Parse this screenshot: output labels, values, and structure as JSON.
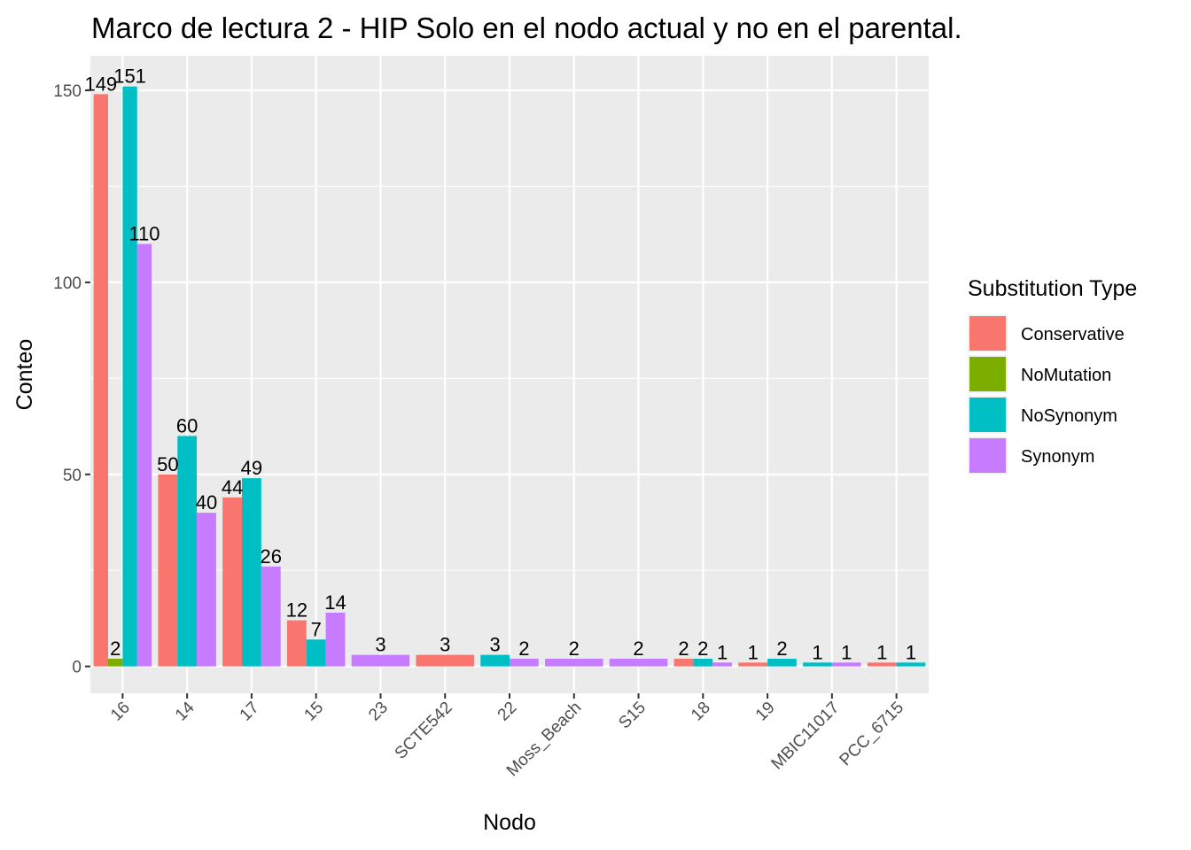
{
  "chart_data": {
    "type": "bar",
    "title": "Marco de lectura 2 - HIP Solo en el nodo actual y no en el parental.",
    "xlabel": "Nodo",
    "ylabel": "Conteo",
    "categories": [
      "16",
      "14",
      "17",
      "15",
      "23",
      "SCTE542",
      "22",
      "Moss_Beach",
      "S15",
      "18",
      "19",
      "MBIC11017",
      "PCC_6715"
    ],
    "ylim": [
      -7,
      159
    ],
    "yticks": [
      0,
      50,
      100,
      150
    ],
    "grid": true,
    "legend": {
      "title": "Substitution Type",
      "position": "right"
    },
    "series": [
      {
        "name": "Conservative",
        "color": "#F8766D",
        "values": [
          149,
          50,
          44,
          12,
          0,
          3,
          0,
          0,
          0,
          2,
          1,
          0,
          1
        ]
      },
      {
        "name": "NoMutation",
        "color": "#7CAE00",
        "values": [
          2,
          0,
          0,
          0,
          0,
          0,
          0,
          0,
          0,
          0,
          0,
          0,
          0
        ]
      },
      {
        "name": "NoSynonym",
        "color": "#00BFC4",
        "values": [
          151,
          60,
          49,
          7,
          0,
          0,
          3,
          0,
          0,
          2,
          2,
          1,
          1
        ]
      },
      {
        "name": "Synonym",
        "color": "#C77CFF",
        "values": [
          110,
          40,
          26,
          14,
          3,
          0,
          2,
          2,
          2,
          1,
          0,
          1,
          0
        ]
      }
    ]
  }
}
